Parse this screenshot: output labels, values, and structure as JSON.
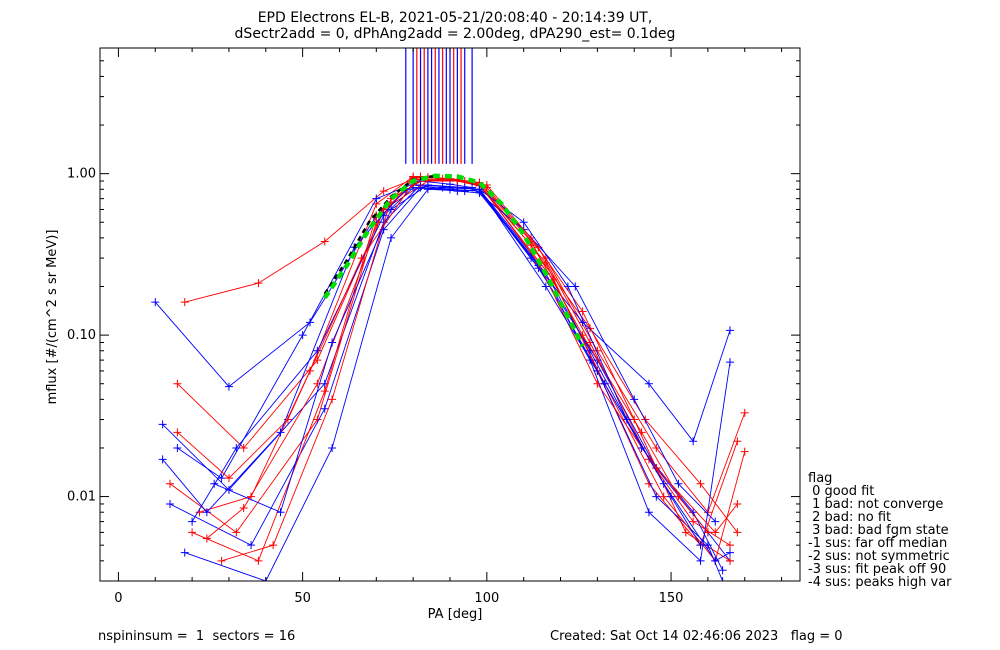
{
  "chart_data": {
    "type": "line",
    "title": "EPD Electrons EL-B, 2021-05-21/20:08:40 - 20:14:39 UT,",
    "subtitle": "dSectr2add = 0, dPhAng2add = 2.00deg, dPA290_est=    0.1deg",
    "xlabel": "PA [deg]",
    "ylabel": "mflux [#/(cm^2 s sr MeV)]",
    "xlim": [
      -5,
      185
    ],
    "ylim": [
      0.003,
      6.0
    ],
    "yscale": "log",
    "xticks": [
      0,
      50,
      100,
      150
    ],
    "xtick_labels": [
      "0",
      "50",
      "100",
      "150"
    ],
    "yticks": [
      0.01,
      0.1,
      1.0
    ],
    "ytick_labels": [
      "0.01",
      "0.10",
      "1.00"
    ],
    "grid": false,
    "legend_position": "right",
    "colors": {
      "red": "#ff0000",
      "blue": "#0000ff",
      "fit": "#00dd00",
      "ref": "#000000"
    },
    "series": [
      {
        "color": "red",
        "x": [
          18,
          38,
          56,
          72,
          82,
          92,
          98,
          112,
          128,
          143,
          158,
          168
        ],
        "y": [
          0.16,
          0.21,
          0.38,
          0.78,
          0.96,
          0.92,
          0.84,
          0.36,
          0.11,
          0.03,
          0.012,
          0.006
        ]
      },
      {
        "color": "blue",
        "x": [
          10,
          30,
          52,
          70,
          80,
          90,
          98,
          114,
          130,
          146,
          160,
          166
        ],
        "y": [
          0.16,
          0.048,
          0.12,
          0.55,
          0.85,
          0.8,
          0.78,
          0.26,
          0.07,
          0.015,
          0.006,
          0.004
        ]
      },
      {
        "color": "red",
        "x": [
          16,
          34,
          54,
          72,
          82,
          92,
          100,
          116,
          130,
          146,
          160,
          170
        ],
        "y": [
          0.05,
          0.02,
          0.07,
          0.6,
          0.92,
          0.9,
          0.82,
          0.3,
          0.08,
          0.02,
          0.008,
          0.033
        ]
      },
      {
        "color": "blue",
        "x": [
          12,
          30,
          56,
          72,
          82,
          92,
          98,
          112,
          126,
          144,
          156,
          166
        ],
        "y": [
          0.028,
          0.011,
          0.05,
          0.5,
          0.85,
          0.82,
          0.8,
          0.3,
          0.12,
          0.05,
          0.022,
          0.107
        ]
      },
      {
        "color": "red",
        "x": [
          14,
          32,
          54,
          70,
          80,
          90,
          98,
          116,
          130,
          144,
          158,
          168
        ],
        "y": [
          0.012,
          0.006,
          0.03,
          0.5,
          0.93,
          0.91,
          0.86,
          0.28,
          0.06,
          0.012,
          0.005,
          0.022
        ]
      },
      {
        "color": "blue",
        "x": [
          14,
          36,
          56,
          72,
          82,
          92,
          98,
          114,
          128,
          144,
          158,
          166
        ],
        "y": [
          0.009,
          0.005,
          0.035,
          0.45,
          0.82,
          0.78,
          0.76,
          0.27,
          0.07,
          0.008,
          0.004,
          0.068
        ]
      },
      {
        "color": "red",
        "x": [
          20,
          38,
          56,
          70,
          80,
          90,
          98,
          112,
          126,
          140,
          154,
          166
        ],
        "y": [
          0.006,
          0.004,
          0.045,
          0.55,
          0.95,
          0.93,
          0.88,
          0.4,
          0.14,
          0.03,
          0.006,
          0.004
        ]
      },
      {
        "color": "blue",
        "x": [
          18,
          40,
          58,
          74,
          84,
          94,
          98,
          112,
          130,
          146,
          160,
          164
        ],
        "y": [
          0.0045,
          0.003,
          0.02,
          0.4,
          0.8,
          0.78,
          0.8,
          0.32,
          0.06,
          0.01,
          0.005,
          0.003
        ]
      },
      {
        "color": "red",
        "x": [
          22,
          36,
          52,
          70,
          80,
          90,
          98,
          118,
          132,
          148,
          162,
          170
        ],
        "y": [
          0.008,
          0.01,
          0.06,
          0.65,
          0.96,
          0.92,
          0.85,
          0.22,
          0.05,
          0.01,
          0.004,
          0.019
        ]
      },
      {
        "color": "blue",
        "x": [
          16,
          28,
          50,
          70,
          82,
          90,
          96,
          110,
          124,
          140,
          152,
          162
        ],
        "y": [
          0.02,
          0.013,
          0.1,
          0.7,
          0.9,
          0.86,
          0.82,
          0.45,
          0.2,
          0.04,
          0.012,
          0.007
        ]
      },
      {
        "color": "red",
        "x": [
          24,
          34,
          54,
          72,
          84,
          92,
          100,
          114,
          128,
          144,
          156,
          166
        ],
        "y": [
          0.0055,
          0.0085,
          0.05,
          0.6,
          0.9,
          0.9,
          0.85,
          0.35,
          0.09,
          0.017,
          0.007,
          0.005
        ]
      },
      {
        "color": "blue",
        "x": [
          20,
          32,
          54,
          72,
          80,
          90,
          98,
          116,
          128,
          142,
          156,
          164
        ],
        "y": [
          0.007,
          0.02,
          0.08,
          0.55,
          0.82,
          0.8,
          0.78,
          0.24,
          0.08,
          0.02,
          0.008,
          0.0035
        ]
      },
      {
        "color": "red",
        "x": [
          28,
          42,
          58,
          74,
          84,
          94,
          98,
          112,
          126,
          142,
          152,
          160
        ],
        "y": [
          0.004,
          0.005,
          0.04,
          0.7,
          0.95,
          0.9,
          0.88,
          0.38,
          0.1,
          0.025,
          0.01,
          0.006
        ]
      },
      {
        "color": "blue",
        "x": [
          26,
          44,
          58,
          74,
          84,
          94,
          98,
          110,
          122,
          138,
          150,
          158
        ],
        "y": [
          0.012,
          0.008,
          0.09,
          0.6,
          0.85,
          0.82,
          0.8,
          0.5,
          0.2,
          0.03,
          0.01,
          0.005
        ]
      },
      {
        "color": "red",
        "x": [
          16,
          30,
          46,
          66,
          80,
          88,
          98,
          114,
          130,
          146,
          162,
          168
        ],
        "y": [
          0.025,
          0.013,
          0.03,
          0.3,
          0.88,
          0.93,
          0.86,
          0.28,
          0.05,
          0.015,
          0.006,
          0.009
        ]
      },
      {
        "color": "blue",
        "x": [
          12,
          24,
          44,
          64,
          78,
          88,
          98,
          116,
          132,
          148,
          162,
          166
        ],
        "y": [
          0.017,
          0.008,
          0.025,
          0.35,
          0.8,
          0.82,
          0.8,
          0.2,
          0.05,
          0.012,
          0.004,
          0.0045
        ]
      }
    ],
    "fit_series": {
      "color": "fit",
      "style": "dashed",
      "x": [
        56,
        62,
        68,
        74,
        80,
        86,
        92,
        98,
        104,
        110,
        116,
        122,
        126
      ],
      "y": [
        0.17,
        0.27,
        0.45,
        0.7,
        0.9,
        0.97,
        0.96,
        0.88,
        0.65,
        0.42,
        0.24,
        0.13,
        0.085
      ]
    },
    "ref_series": {
      "color": "ref",
      "style": "dashed",
      "x": [
        56,
        62,
        68,
        74,
        80,
        86
      ],
      "y": [
        0.18,
        0.29,
        0.5,
        0.72,
        0.92,
        0.97
      ]
    },
    "spikes": {
      "x_red": [
        81,
        83,
        86,
        88,
        91,
        93
      ],
      "x_blue": [
        78,
        80,
        82,
        84,
        85,
        87,
        89,
        90,
        92,
        94,
        96
      ],
      "y_top": 6.0,
      "y_bottom": 1.15
    }
  },
  "legend": {
    "header": "flag",
    "items": [
      " 0 good fit",
      " 1 bad: not converge",
      " 2 bad: no fit",
      " 3 bad: bad fgm state",
      "-1 sus: far off median",
      "-2 sus: not symmetric",
      "-3 sus: fit peak off 90",
      "-4 sus: peaks high var"
    ]
  },
  "footer": {
    "left": "nspininsum =  1  sectors = 16",
    "right": "Created: Sat Oct 14 02:46:06 2023   flag = 0"
  }
}
